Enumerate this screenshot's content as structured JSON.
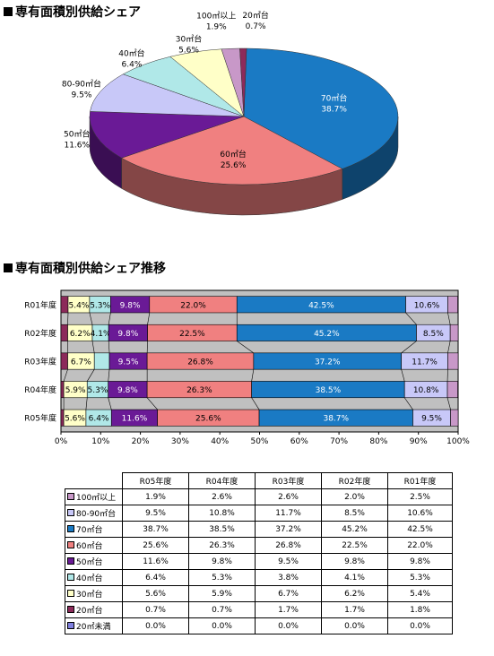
{
  "headings": {
    "pie_title": "専有面積別供給シェア",
    "bar_title": "専有面積別供給シェア推移"
  },
  "chart_data": [
    {
      "type": "pie",
      "title": "専有面積別供給シェア",
      "labels": [
        "70㎡台",
        "60㎡台",
        "50㎡台",
        "80-90㎡台",
        "40㎡台",
        "30㎡台",
        "100㎡以上",
        "20㎡台"
      ],
      "values": [
        38.7,
        25.6,
        11.6,
        9.5,
        6.4,
        5.6,
        1.9,
        0.7
      ],
      "value_labels": [
        "38.7%",
        "25.6%",
        "11.6%",
        "9.5%",
        "6.4%",
        "5.6%",
        "1.9%",
        "0.7%"
      ],
      "colors": [
        "#1a7ac4",
        "#f08080",
        "#6a1a96",
        "#c8c8f8",
        "#b0e8e8",
        "#ffffc8",
        "#c898c8",
        "#8c2a5a"
      ]
    },
    {
      "type": "bar",
      "stacked": true,
      "orientation": "horizontal",
      "title": "専有面積別供給シェア推移",
      "categories": [
        "R01年度",
        "R02年度",
        "R03年度",
        "R04年度",
        "R05年度"
      ],
      "xlim": [
        0,
        100
      ],
      "xticks": [
        "0%",
        "10%",
        "20%",
        "30%",
        "40%",
        "50%",
        "60%",
        "70%",
        "80%",
        "90%",
        "100%"
      ],
      "series": [
        {
          "name": "20㎡未満",
          "color": "#8080e0",
          "values": [
            0.0,
            0.0,
            0.0,
            0.0,
            0.0
          ],
          "labels": [
            "",
            "",
            "",
            "",
            ""
          ]
        },
        {
          "name": "20㎡台",
          "color": "#8c2a5a",
          "values": [
            1.8,
            1.7,
            1.7,
            0.7,
            0.7
          ],
          "labels": [
            "",
            "",
            "",
            "",
            ""
          ]
        },
        {
          "name": "30㎡台",
          "color": "#ffffc8",
          "values": [
            5.4,
            6.2,
            6.7,
            5.9,
            5.6
          ],
          "labels": [
            "5.4%",
            "6.2%",
            "6.7%",
            "5.9%",
            "5.6%"
          ]
        },
        {
          "name": "40㎡台",
          "color": "#b0e8e8",
          "values": [
            5.3,
            4.1,
            3.8,
            5.3,
            6.4
          ],
          "labels": [
            "5.3%",
            "4.1%",
            "",
            "5.3%",
            "6.4%"
          ]
        },
        {
          "name": "50㎡台",
          "color": "#6a1a96",
          "values": [
            9.8,
            9.8,
            9.5,
            9.8,
            11.6
          ],
          "labels": [
            "9.8%",
            "9.8%",
            "9.5%",
            "9.8%",
            "11.6%"
          ]
        },
        {
          "name": "60㎡台",
          "color": "#f08080",
          "values": [
            22.0,
            22.5,
            26.8,
            26.3,
            25.6
          ],
          "labels": [
            "22.0%",
            "22.5%",
            "26.8%",
            "26.3%",
            "25.6%"
          ]
        },
        {
          "name": "70㎡台",
          "color": "#1a7ac4",
          "values": [
            42.5,
            45.2,
            37.2,
            38.5,
            38.7
          ],
          "labels": [
            "42.5%",
            "45.2%",
            "37.2%",
            "38.5%",
            "38.7%"
          ]
        },
        {
          "name": "80-90㎡台",
          "color": "#c8c8f8",
          "values": [
            10.6,
            8.5,
            11.7,
            10.8,
            9.5
          ],
          "labels": [
            "10.6%",
            "8.5%",
            "11.7%",
            "10.8%",
            "9.5%"
          ]
        },
        {
          "name": "100㎡以上",
          "color": "#c898c8",
          "values": [
            2.5,
            2.0,
            2.6,
            2.6,
            1.9
          ],
          "labels": [
            "",
            "",
            "",
            "",
            ""
          ]
        }
      ]
    },
    {
      "type": "table",
      "columns": [
        "R05年度",
        "R04年度",
        "R03年度",
        "R02年度",
        "R01年度"
      ],
      "rows": [
        {
          "label": "100㎡以上",
          "color": "#c898c8",
          "values": [
            "1.9%",
            "2.6%",
            "2.6%",
            "2.0%",
            "2.5%"
          ]
        },
        {
          "label": "80-90㎡台",
          "color": "#c8c8f8",
          "values": [
            "9.5%",
            "10.8%",
            "11.7%",
            "8.5%",
            "10.6%"
          ]
        },
        {
          "label": "70㎡台",
          "color": "#1a7ac4",
          "values": [
            "38.7%",
            "38.5%",
            "37.2%",
            "45.2%",
            "42.5%"
          ]
        },
        {
          "label": "60㎡台",
          "color": "#f08080",
          "values": [
            "25.6%",
            "26.3%",
            "26.8%",
            "22.5%",
            "22.0%"
          ]
        },
        {
          "label": "50㎡台",
          "color": "#6a1a96",
          "values": [
            "11.6%",
            "9.8%",
            "9.5%",
            "9.8%",
            "9.8%"
          ]
        },
        {
          "label": "40㎡台",
          "color": "#b0e8e8",
          "values": [
            "6.4%",
            "5.3%",
            "3.8%",
            "4.1%",
            "5.3%"
          ]
        },
        {
          "label": "30㎡台",
          "color": "#ffffc8",
          "values": [
            "5.6%",
            "5.9%",
            "6.7%",
            "6.2%",
            "5.4%"
          ]
        },
        {
          "label": "20㎡台",
          "color": "#8c2a5a",
          "values": [
            "0.7%",
            "0.7%",
            "1.7%",
            "1.7%",
            "1.8%"
          ]
        },
        {
          "label": "20㎡未満",
          "color": "#8080e0",
          "values": [
            "0.0%",
            "0.0%",
            "0.0%",
            "0.0%",
            "0.0%"
          ]
        }
      ]
    }
  ]
}
